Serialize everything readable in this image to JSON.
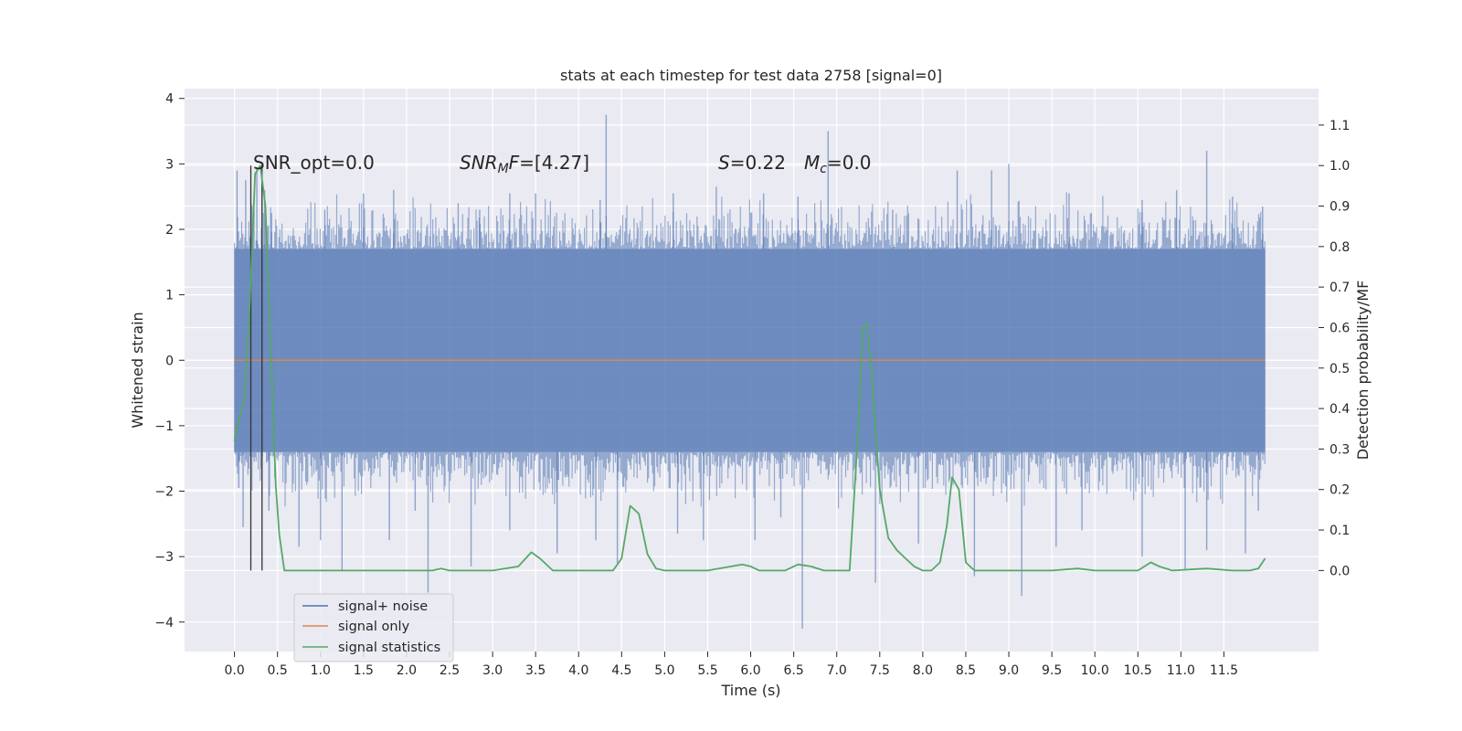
{
  "chart_data": {
    "type": "line",
    "title": "stats at each timestep for test data 2758 [signal=0]",
    "xlabel": "Time (s)",
    "ylabel": "Whitened strain",
    "y2label": "Detection probability/MF",
    "xlim": [
      -0.58,
      12.6
    ],
    "ylim": [
      -4.45,
      4.15
    ],
    "y2lim": [
      -0.2,
      1.19
    ],
    "x_ticks": [
      "0.0",
      "0.5",
      "1.0",
      "1.5",
      "2.0",
      "2.5",
      "3.0",
      "3.5",
      "4.0",
      "4.5",
      "5.0",
      "5.5",
      "6.0",
      "6.5",
      "7.0",
      "7.5",
      "8.0",
      "8.5",
      "9.0",
      "9.5",
      "10.0",
      "10.5",
      "11.0",
      "11.5"
    ],
    "y_ticks": [
      "−4",
      "−3",
      "−2",
      "−1",
      "0",
      "1",
      "2",
      "3",
      "4"
    ],
    "y2_ticks": [
      "0.0",
      "0.1",
      "0.2",
      "0.3",
      "0.4",
      "0.5",
      "0.6",
      "0.7",
      "0.8",
      "0.9",
      "1.0",
      "1.1"
    ],
    "grid": true,
    "legend_position": "lower-left",
    "annotations": {
      "snr_opt": "SNR_opt=0.0",
      "snr_mf_var": "SNR",
      "snr_mf_sub": "M",
      "snr_mf_rest": "F",
      "snr_mf_value": "=[4.27]",
      "s_var": "S",
      "s_value": "=0.22",
      "mc_var": "M",
      "mc_sub": "c",
      "mc_value": "=0.0"
    },
    "series": [
      {
        "name": "signal+ noise",
        "color": "#4c72b0",
        "x_range": [
          0.0,
          11.98
        ],
        "band": [
          -1.4,
          1.7
        ],
        "spikes": [
          [
            0.03,
            2.9
          ],
          [
            0.13,
            2.75
          ],
          [
            0.26,
            2.95
          ],
          [
            0.35,
            2.6
          ],
          [
            0.43,
            2.25
          ],
          [
            1.05,
            2.3
          ],
          [
            1.5,
            2.55
          ],
          [
            1.85,
            2.6
          ],
          [
            2.6,
            2.4
          ],
          [
            2.85,
            2.3
          ],
          [
            3.2,
            2.55
          ],
          [
            3.5,
            2.55
          ],
          [
            4.25,
            2.45
          ],
          [
            4.32,
            3.75
          ],
          [
            5.1,
            2.55
          ],
          [
            5.6,
            2.65
          ],
          [
            6.15,
            2.55
          ],
          [
            6.55,
            2.5
          ],
          [
            6.9,
            3.5
          ],
          [
            7.65,
            2.3
          ],
          [
            8.4,
            2.9
          ],
          [
            8.8,
            2.9
          ],
          [
            9.0,
            3.0
          ],
          [
            9.7,
            2.55
          ],
          [
            10.55,
            2.45
          ],
          [
            10.95,
            2.6
          ],
          [
            11.3,
            3.2
          ],
          [
            11.6,
            2.5
          ],
          [
            11.95,
            2.35
          ],
          [
            0.05,
            -1.95
          ],
          [
            0.1,
            -2.55
          ],
          [
            0.4,
            -2.3
          ],
          [
            0.75,
            -2.85
          ],
          [
            1.0,
            -2.75
          ],
          [
            1.25,
            -3.2
          ],
          [
            1.8,
            -2.75
          ],
          [
            2.1,
            -2.3
          ],
          [
            2.25,
            -3.55
          ],
          [
            2.75,
            -3.15
          ],
          [
            3.2,
            -2.6
          ],
          [
            3.75,
            -2.95
          ],
          [
            4.2,
            -2.75
          ],
          [
            4.45,
            -3.1
          ],
          [
            5.15,
            -2.65
          ],
          [
            5.45,
            -2.75
          ],
          [
            6.05,
            -2.75
          ],
          [
            6.35,
            -2.4
          ],
          [
            6.6,
            -4.1
          ],
          [
            7.45,
            -3.4
          ],
          [
            7.95,
            -2.8
          ],
          [
            8.6,
            -3.3
          ],
          [
            9.15,
            -3.6
          ],
          [
            9.55,
            -2.85
          ],
          [
            9.85,
            -2.6
          ],
          [
            10.55,
            -3.0
          ],
          [
            11.05,
            -3.2
          ],
          [
            11.3,
            -2.9
          ],
          [
            11.75,
            -2.95
          ],
          [
            11.9,
            -2.3
          ]
        ]
      },
      {
        "name": "signal only",
        "color": "#dd8452",
        "x": [
          0.0,
          11.98
        ],
        "y": [
          0.0,
          0.0
        ]
      },
      {
        "name": "signal statistics",
        "color": "#55a868",
        "axis": "right",
        "x": [
          0.0,
          0.06,
          0.12,
          0.18,
          0.24,
          0.3,
          0.36,
          0.42,
          0.48,
          0.52,
          0.58,
          0.7,
          1.0,
          1.5,
          2.0,
          2.3,
          2.4,
          2.5,
          2.6,
          3.0,
          3.3,
          3.45,
          3.55,
          3.7,
          4.0,
          4.4,
          4.5,
          4.6,
          4.7,
          4.8,
          4.9,
          5.0,
          5.5,
          5.9,
          6.0,
          6.1,
          6.4,
          6.55,
          6.7,
          6.85,
          7.0,
          7.15,
          7.25,
          7.3,
          7.35,
          7.4,
          7.5,
          7.6,
          7.7,
          7.8,
          7.9,
          8.0,
          8.1,
          8.2,
          8.28,
          8.34,
          8.42,
          8.5,
          8.6,
          9.0,
          9.5,
          9.8,
          10.0,
          10.5,
          10.65,
          10.75,
          10.9,
          11.3,
          11.6,
          11.8,
          11.9,
          11.98
        ],
        "y": [
          0.32,
          0.38,
          0.43,
          0.67,
          0.98,
          1.0,
          0.9,
          0.55,
          0.21,
          0.09,
          0.0,
          0.0,
          0.0,
          0.0,
          0.0,
          0.0,
          0.005,
          0.0,
          0.0,
          0.0,
          0.01,
          0.045,
          0.03,
          0.0,
          0.0,
          0.0,
          0.03,
          0.16,
          0.14,
          0.04,
          0.005,
          0.0,
          0.0,
          0.015,
          0.01,
          0.0,
          0.0,
          0.015,
          0.01,
          0.0,
          0.0,
          0.0,
          0.35,
          0.6,
          0.61,
          0.5,
          0.2,
          0.08,
          0.05,
          0.03,
          0.01,
          0.0,
          0.0,
          0.02,
          0.11,
          0.23,
          0.2,
          0.02,
          0.0,
          0.0,
          0.0,
          0.005,
          0.0,
          0.0,
          0.02,
          0.01,
          0.0,
          0.005,
          0.0,
          0.0,
          0.005,
          0.03
        ]
      }
    ],
    "vertical_lines": [
      0.19,
      0.32
    ],
    "vertical_lines_color": "#333333"
  }
}
